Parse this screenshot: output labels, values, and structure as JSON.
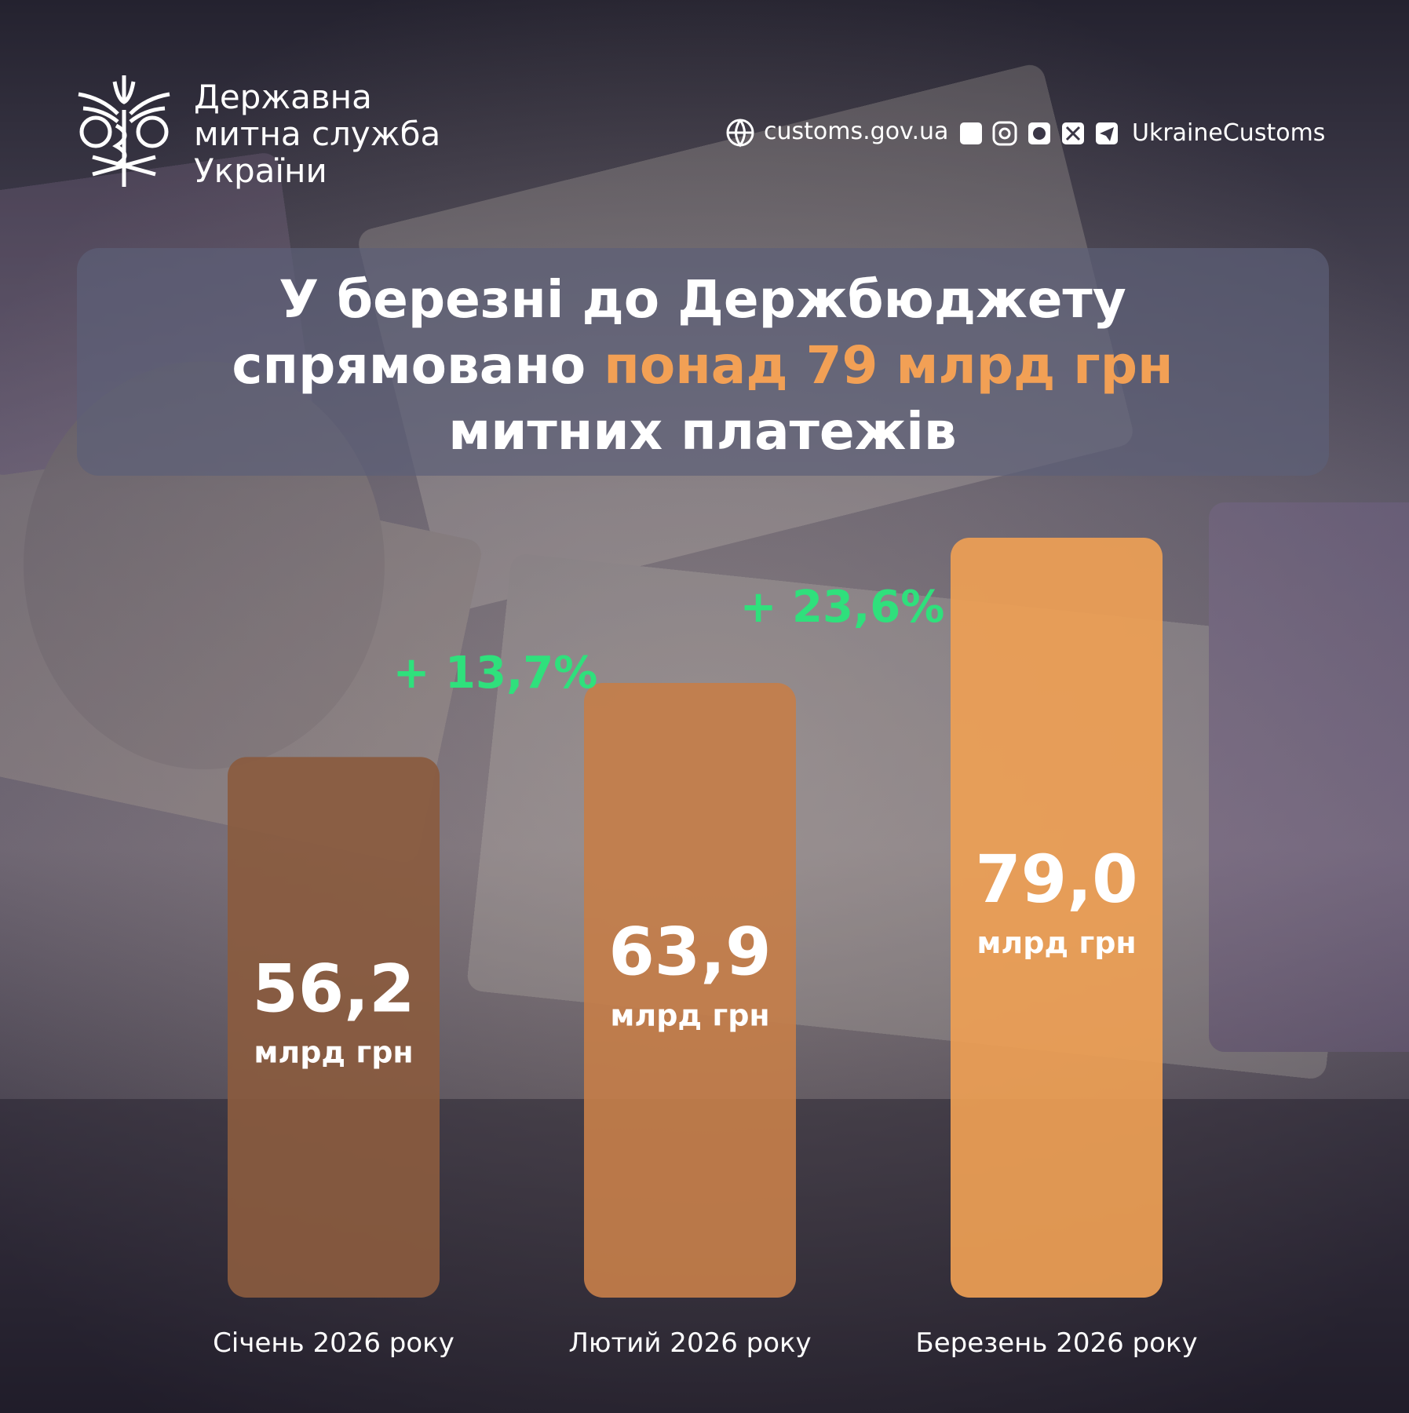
{
  "header": {
    "org_name": [
      "Державна",
      "митна служба",
      "України"
    ],
    "website": "customs.gov.ua",
    "social": "UkraineCustoms"
  },
  "title": {
    "line1": "У березні до Держбюджету",
    "line2_start": "спрямовано",
    "highlight": "понад 79 млрд грн",
    "line3": "митних платежів"
  },
  "chart_data": {
    "type": "bar",
    "categories": [
      "Січень 2026 року",
      "Лютий 2026 року",
      "Березень 2026 року"
    ],
    "values": [
      56.2,
      63.9,
      79.0
    ],
    "value_labels": [
      "56,2",
      "63,9",
      "79,0"
    ],
    "value_units": [
      "млрд грн",
      "млрд грн",
      "млрд грн"
    ],
    "colors": [
      "#8a5b3f",
      "#c47e4a",
      "#ee9f55"
    ],
    "annotations": [
      {
        "text": "+ 13,7%",
        "color": "#2fe07c"
      },
      {
        "text": "+ 23,6%",
        "color": "#2fe07c"
      }
    ]
  }
}
